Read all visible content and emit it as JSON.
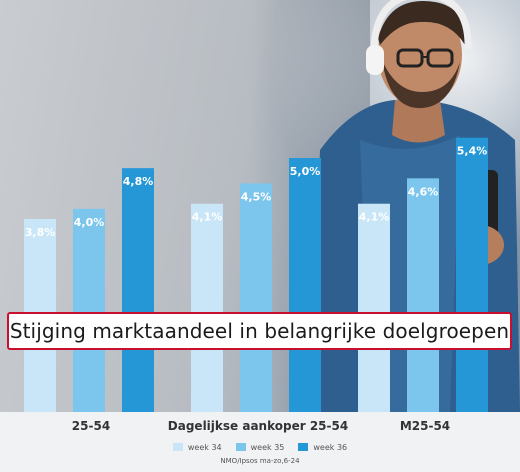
{
  "chart_data": {
    "type": "bar",
    "title": "Stijging marktaandeel in belangrijke doelgroepen",
    "categories": [
      "25-54",
      "Dagelijkse aankoper 25-54",
      "M25-54"
    ],
    "series": [
      {
        "name": "week 34",
        "color": "#c8e6f7",
        "values": [
          3.8,
          4.1,
          4.1
        ],
        "labels": [
          "3,8%",
          "4,1%",
          "4,1%"
        ]
      },
      {
        "name": "week 35",
        "color": "#7cc6ed",
        "values": [
          4.0,
          4.5,
          4.6
        ],
        "labels": [
          "4,0%",
          "4,5%",
          "4,6%"
        ]
      },
      {
        "name": "week 36",
        "color": "#2596d6",
        "values": [
          4.8,
          5.0,
          5.4
        ],
        "labels": [
          "4,8%",
          "5,0%",
          "5,4%"
        ]
      }
    ],
    "ylim": [
      0,
      5.8
    ],
    "grid": false,
    "legend_position": "bottom"
  },
  "source": "NMO/Ipsos ma-zo,6-24"
}
